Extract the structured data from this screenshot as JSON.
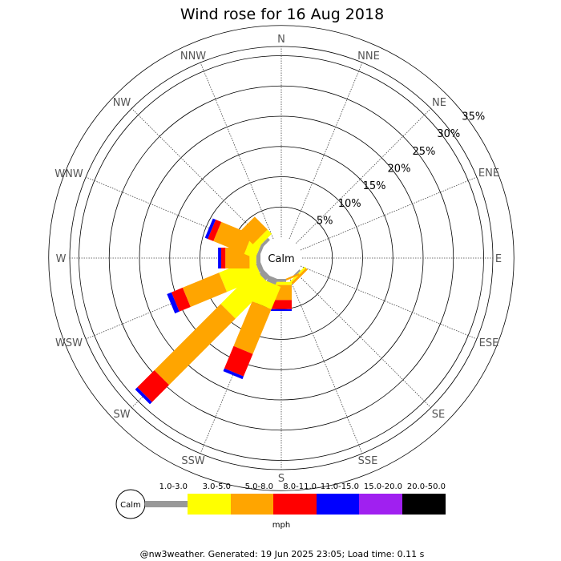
{
  "chart_data": {
    "type": "wind-rose",
    "title": "Wind rose for 16 Aug 2018",
    "directions": [
      "N",
      "NNE",
      "NE",
      "ENE",
      "E",
      "ESE",
      "SE",
      "SSE",
      "S",
      "SSW",
      "SW",
      "WSW",
      "W",
      "WNW",
      "NW",
      "NNW"
    ],
    "ring_labels": [
      "5%",
      "10%",
      "15%",
      "20%",
      "25%",
      "30%",
      "35%"
    ],
    "ring_values": [
      5,
      10,
      15,
      20,
      25,
      30,
      35
    ],
    "calm_label": "Calm",
    "speed_bins": [
      {
        "label": "1.0-3.0",
        "color": "#999999"
      },
      {
        "label": "3.0-5.0",
        "color": "#ffff00"
      },
      {
        "label": "5.0-8.0",
        "color": "#ffa500"
      },
      {
        "label": "8.0-11.0",
        "color": "#ff0000"
      },
      {
        "label": "11.0-15.0",
        "color": "#0000ff"
      },
      {
        "label": "15.0-20.0",
        "color": "#a020f0"
      },
      {
        "label": "20.0-50.0",
        "color": "#000000"
      }
    ],
    "unit_label": "mph",
    "calm_percent": 0,
    "cumulative_percent": {
      "N": [
        0,
        0,
        0,
        0,
        0,
        0,
        0
      ],
      "NNE": [
        0,
        0,
        0,
        0,
        0,
        0,
        0
      ],
      "NE": [
        0,
        0,
        0,
        0,
        0,
        0,
        0
      ],
      "ENE": [
        0,
        0,
        0,
        0,
        0,
        0,
        0
      ],
      "E": [
        0,
        0,
        0,
        0,
        0,
        0,
        0
      ],
      "ESE": [
        0,
        0,
        0,
        0,
        0,
        0,
        0
      ],
      "SE": [
        0.3,
        0.6,
        1.0,
        1.0,
        1.0,
        1.0,
        1.0
      ],
      "SSE": [
        0.0,
        0.0,
        0.3,
        0.3,
        0.3,
        0.3,
        0.3
      ],
      "S": [
        0.5,
        1.0,
        3.5,
        5.0,
        5.3,
        5.3,
        5.3
      ],
      "SSW": [
        1.0,
        5.0,
        13.0,
        17.0,
        17.5,
        17.5,
        17.5
      ],
      "SW": [
        1.0,
        9.0,
        24.5,
        28.5,
        29.0,
        29.0,
        29.0
      ],
      "WSW": [
        0.8,
        7.0,
        13.5,
        15.5,
        16.3,
        16.3,
        16.3
      ],
      "W": [
        0.7,
        1.8,
        5.8,
        6.5,
        7.0,
        7.0,
        7.0
      ],
      "WNW": [
        0.5,
        2.5,
        8.0,
        9.0,
        9.5,
        9.5,
        9.5
      ],
      "NW": [
        0.5,
        1.5,
        4.5,
        4.5,
        4.5,
        4.5,
        4.5
      ],
      "NNW": [
        0,
        0,
        0,
        0,
        0,
        0,
        0
      ]
    }
  },
  "footer": "@nw3weather. Generated: 19 Jun 2025 23:05; Load time: 0.11 s"
}
